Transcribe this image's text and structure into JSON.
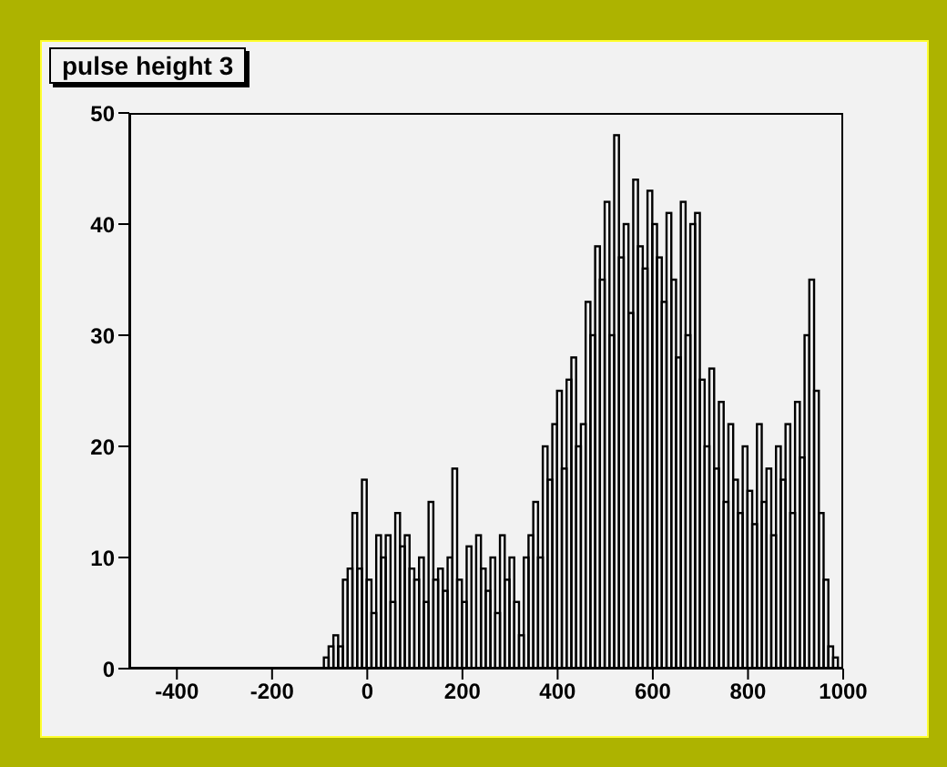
{
  "chart_data": {
    "type": "histogram",
    "title": "pulse height 3",
    "color": "#000000",
    "bins": [
      -100,
      -90,
      -80,
      -70,
      -60,
      -50,
      -40,
      -30,
      -20,
      -10,
      0,
      10,
      20,
      30,
      40,
      50,
      60,
      70,
      80,
      90,
      100,
      110,
      120,
      130,
      140,
      150,
      160,
      170,
      180,
      190,
      200,
      210,
      220,
      230,
      240,
      250,
      260,
      270,
      280,
      290,
      300,
      310,
      320,
      330,
      340,
      350,
      360,
      370,
      380,
      390,
      400,
      410,
      420,
      430,
      440,
      450,
      460,
      470,
      480,
      490,
      500,
      510,
      520,
      530,
      540,
      550,
      560,
      570,
      580,
      590,
      600,
      610,
      620,
      630,
      640,
      650,
      660,
      670,
      680,
      690,
      700,
      710,
      720,
      730,
      740,
      750,
      760,
      770,
      780,
      790,
      800,
      810,
      820,
      830,
      840,
      850,
      860,
      870,
      880,
      890,
      900,
      910,
      920,
      930,
      940,
      950,
      960,
      970,
      980,
      990,
      1000
    ],
    "values": [
      0,
      1,
      2,
      3,
      2,
      8,
      9,
      14,
      9,
      17,
      8,
      5,
      12,
      10,
      12,
      6,
      14,
      11,
      12,
      9,
      8,
      10,
      6,
      15,
      8,
      9,
      7,
      10,
      18,
      8,
      6,
      11,
      0,
      12,
      9,
      7,
      10,
      5,
      12,
      8,
      10,
      6,
      3,
      10,
      12,
      15,
      10,
      20,
      17,
      22,
      25,
      18,
      26,
      28,
      20,
      22,
      33,
      30,
      38,
      35,
      42,
      30,
      48,
      37,
      40,
      32,
      44,
      38,
      36,
      43,
      40,
      37,
      33,
      41,
      35,
      28,
      42,
      30,
      40,
      41,
      26,
      20,
      27,
      18,
      24,
      15,
      22,
      17,
      14,
      20,
      16,
      13,
      22,
      15,
      18,
      12,
      20,
      17,
      22,
      14,
      24,
      19,
      30,
      35,
      25,
      14,
      8,
      2,
      1,
      0
    ],
    "xlim": [
      -500,
      1000
    ],
    "xticks": [
      -400,
      -200,
      0,
      200,
      400,
      600,
      800,
      1000
    ],
    "ylim": [
      0,
      50
    ],
    "yticks": [
      0,
      10,
      20,
      30,
      40,
      50
    ]
  }
}
